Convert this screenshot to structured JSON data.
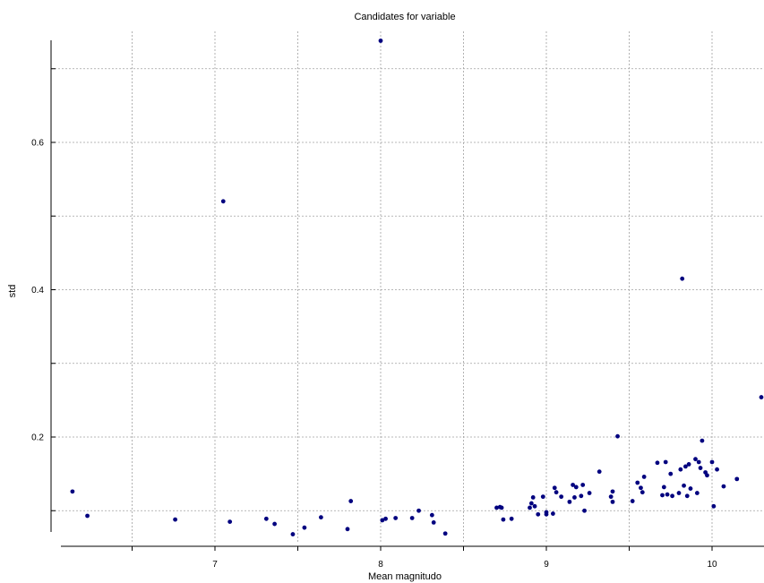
{
  "chart_data": {
    "type": "scatter",
    "title": "Candidates for variable",
    "xlabel": "Mean magnitudo",
    "ylabel": "std",
    "xlim": [
      6.1,
      10.32
    ],
    "ylim": [
      0.05,
      0.75
    ],
    "xticks": [
      6.5,
      7,
      7.5,
      8,
      8.5,
      9,
      9.5,
      10
    ],
    "xtick_labels": [
      "",
      "7",
      "",
      "8",
      "",
      "9",
      "",
      "10"
    ],
    "yticks": [
      0.1,
      0.2,
      0.3,
      0.4,
      0.5,
      0.6,
      0.7
    ],
    "ytick_labels": [
      "",
      "0.2",
      "",
      "0.4",
      "",
      "0.6",
      ""
    ],
    "grid": true,
    "marker_color": "#00007f",
    "points": [
      [
        6.14,
        0.126
      ],
      [
        6.23,
        0.093
      ],
      [
        6.76,
        0.088
      ],
      [
        7.05,
        0.52
      ],
      [
        7.09,
        0.085
      ],
      [
        7.31,
        0.089
      ],
      [
        7.36,
        0.082
      ],
      [
        7.47,
        0.068
      ],
      [
        7.54,
        0.077
      ],
      [
        7.64,
        0.091
      ],
      [
        7.8,
        0.075
      ],
      [
        7.82,
        0.113
      ],
      [
        8.0,
        0.738
      ],
      [
        8.01,
        0.087
      ],
      [
        8.03,
        0.089
      ],
      [
        8.09,
        0.09
      ],
      [
        8.19,
        0.09
      ],
      [
        8.23,
        0.1
      ],
      [
        8.31,
        0.094
      ],
      [
        8.32,
        0.084
      ],
      [
        8.39,
        0.069
      ],
      [
        8.7,
        0.104
      ],
      [
        8.72,
        0.105
      ],
      [
        8.73,
        0.104
      ],
      [
        8.74,
        0.088
      ],
      [
        8.79,
        0.089
      ],
      [
        8.9,
        0.104
      ],
      [
        8.91,
        0.11
      ],
      [
        8.92,
        0.118
      ],
      [
        8.93,
        0.106
      ],
      [
        8.95,
        0.095
      ],
      [
        8.98,
        0.119
      ],
      [
        9.0,
        0.095
      ],
      [
        9.0,
        0.098
      ],
      [
        9.04,
        0.096
      ],
      [
        9.05,
        0.131
      ],
      [
        9.06,
        0.125
      ],
      [
        9.09,
        0.119
      ],
      [
        9.14,
        0.112
      ],
      [
        9.16,
        0.135
      ],
      [
        9.17,
        0.118
      ],
      [
        9.18,
        0.132
      ],
      [
        9.21,
        0.12
      ],
      [
        9.22,
        0.135
      ],
      [
        9.23,
        0.1
      ],
      [
        9.26,
        0.124
      ],
      [
        9.32,
        0.153
      ],
      [
        9.39,
        0.119
      ],
      [
        9.4,
        0.112
      ],
      [
        9.4,
        0.126
      ],
      [
        9.43,
        0.201
      ],
      [
        9.52,
        0.113
      ],
      [
        9.55,
        0.138
      ],
      [
        9.57,
        0.131
      ],
      [
        9.58,
        0.125
      ],
      [
        9.59,
        0.146
      ],
      [
        9.67,
        0.165
      ],
      [
        9.7,
        0.121
      ],
      [
        9.71,
        0.132
      ],
      [
        9.72,
        0.166
      ],
      [
        9.73,
        0.122
      ],
      [
        9.75,
        0.15
      ],
      [
        9.76,
        0.12
      ],
      [
        9.8,
        0.124
      ],
      [
        9.81,
        0.156
      ],
      [
        9.82,
        0.415
      ],
      [
        9.83,
        0.134
      ],
      [
        9.84,
        0.16
      ],
      [
        9.85,
        0.12
      ],
      [
        9.86,
        0.163
      ],
      [
        9.87,
        0.13
      ],
      [
        9.9,
        0.17
      ],
      [
        9.91,
        0.124
      ],
      [
        9.92,
        0.166
      ],
      [
        9.93,
        0.158
      ],
      [
        9.94,
        0.195
      ],
      [
        9.96,
        0.152
      ],
      [
        9.97,
        0.148
      ],
      [
        10.0,
        0.166
      ],
      [
        10.01,
        0.106
      ],
      [
        10.03,
        0.156
      ],
      [
        10.07,
        0.133
      ],
      [
        10.15,
        0.143
      ],
      [
        10.31,
        0.254
      ]
    ]
  }
}
